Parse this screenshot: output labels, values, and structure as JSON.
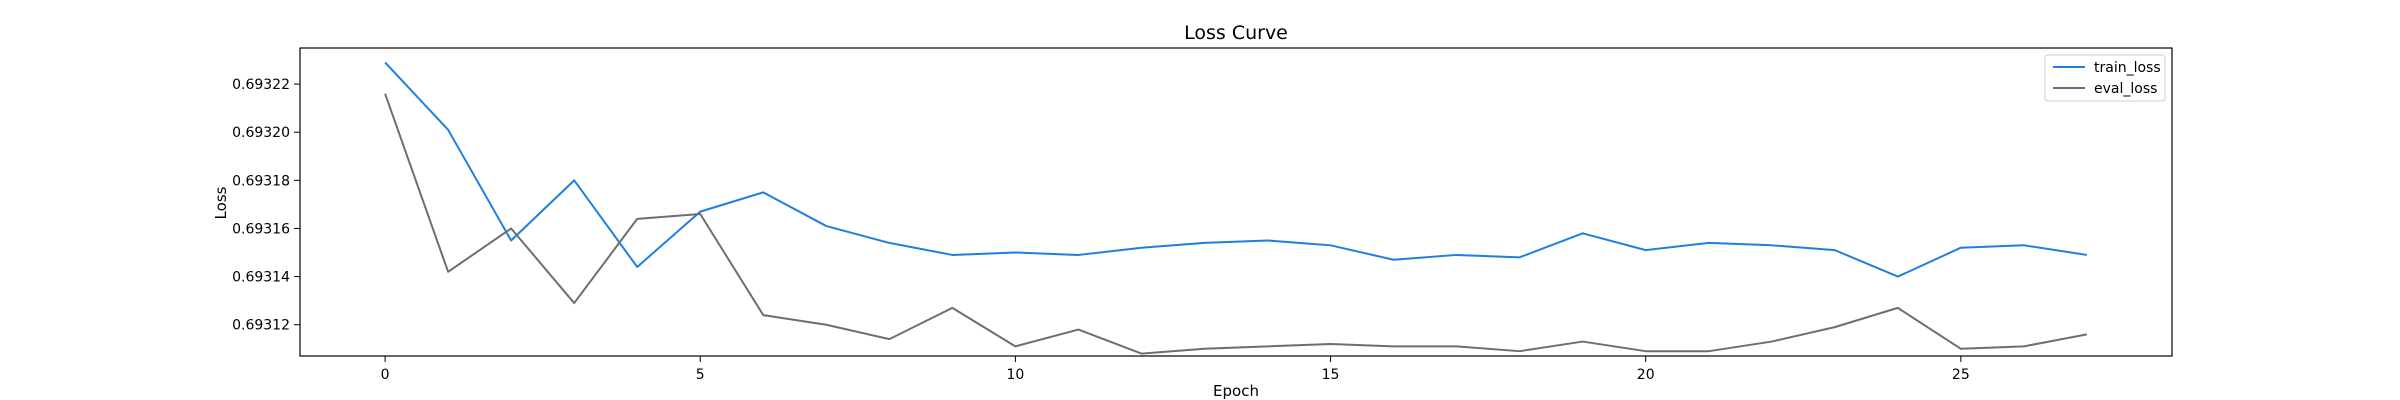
{
  "chart_data": {
    "type": "line",
    "title": "Loss Curve",
    "xlabel": "Epoch",
    "ylabel": "Loss",
    "xlim": [
      -1.35,
      28.35
    ],
    "ylim": [
      0.693107,
      0.693235
    ],
    "x_ticks": [
      0,
      5,
      10,
      15,
      20,
      25
    ],
    "y_ticks": [
      0.69312,
      0.69314,
      0.69316,
      0.69318,
      0.6932,
      0.69322
    ],
    "y_tick_labels": [
      "0.69312",
      "0.69314",
      "0.69316",
      "0.69318",
      "0.69320",
      "0.69322"
    ],
    "grid": false,
    "legend_position": "top-right",
    "x": [
      0,
      1,
      2,
      3,
      4,
      5,
      6,
      7,
      8,
      9,
      10,
      11,
      12,
      13,
      14,
      15,
      16,
      17,
      18,
      19,
      20,
      21,
      22,
      23,
      24,
      25,
      26,
      27
    ],
    "series": [
      {
        "name": "train_loss",
        "color": "#1f7fe0",
        "values": [
          0.693229,
          0.693201,
          0.693155,
          0.69318,
          0.693144,
          0.693167,
          0.693175,
          0.693161,
          0.693154,
          0.693149,
          0.69315,
          0.693149,
          0.693152,
          0.693154,
          0.693155,
          0.693153,
          0.693147,
          0.693149,
          0.693148,
          0.693158,
          0.693151,
          0.693154,
          0.693153,
          0.693151,
          0.69314,
          0.693152,
          0.693153,
          0.693149
        ]
      },
      {
        "name": "eval_loss",
        "color": "#6e6e6e",
        "values": [
          0.693216,
          0.693142,
          0.69316,
          0.693129,
          0.693164,
          0.693166,
          0.693124,
          0.69312,
          0.693114,
          0.693127,
          0.693111,
          0.693118,
          0.693108,
          0.69311,
          0.693111,
          0.693112,
          0.693111,
          0.693111,
          0.693109,
          0.693113,
          0.693109,
          0.693109,
          0.693113,
          0.693119,
          0.693127,
          0.69311,
          0.693111,
          0.693116
        ]
      }
    ]
  }
}
